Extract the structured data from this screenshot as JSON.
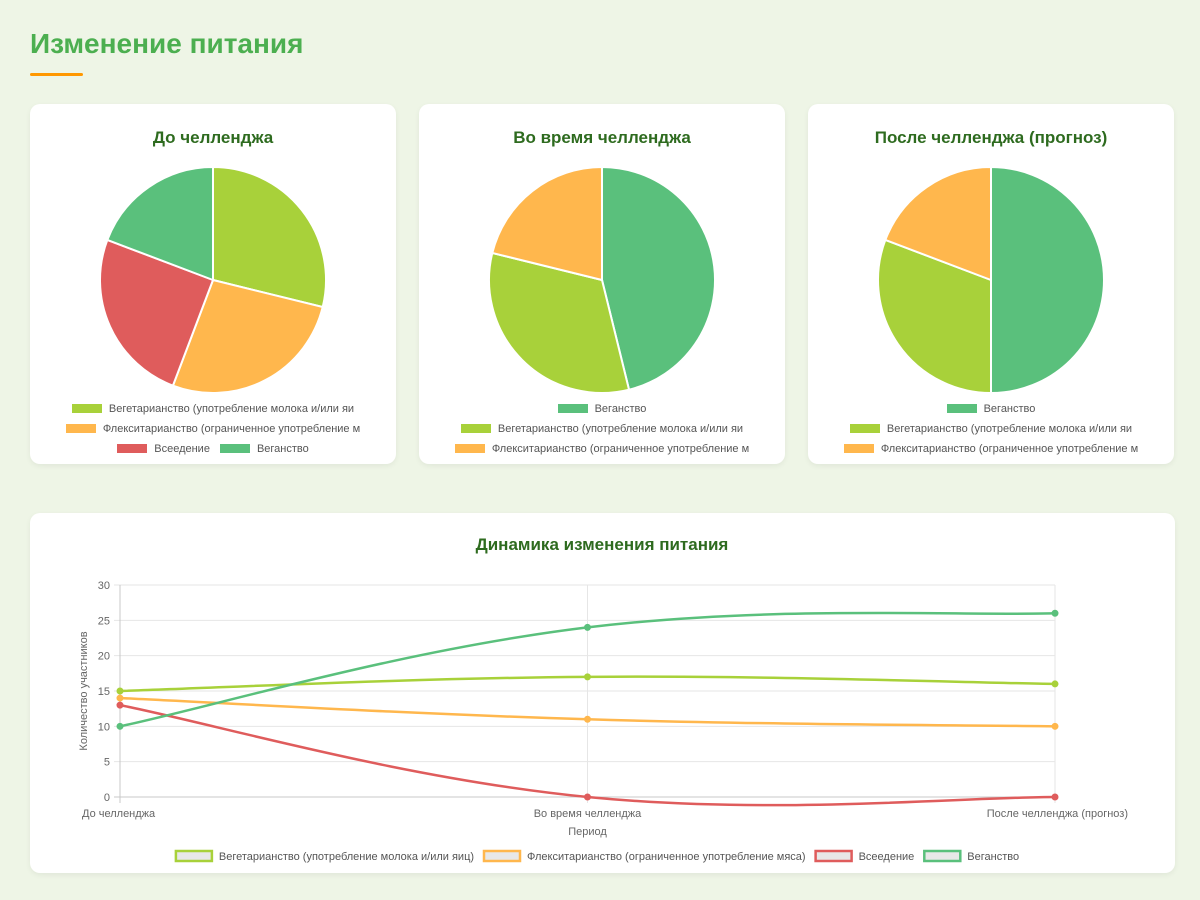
{
  "page": {
    "title": "Изменение питания"
  },
  "colors": {
    "vegetarian": "#a8d13a",
    "flexitarian": "#ffb74d",
    "omnivore": "#df5c5c",
    "vegan": "#5ac07c"
  },
  "chart_data": [
    {
      "type": "pie",
      "title": "До челленджа",
      "slices": [
        {
          "label": "Вегетарианство (употребление молока и/или яиц)",
          "legend_text": "Вегетарианство (употребление молока и/или яи",
          "value": 15,
          "color": "#a8d13a"
        },
        {
          "label": "Флекситарианство (ограниченное употребление мяса)",
          "legend_text": "Флекситарианство (ограниченное употребление м",
          "value": 14,
          "color": "#ffb74d"
        },
        {
          "label": "Всеедение",
          "legend_text": "Всеедение",
          "value": 13,
          "color": "#df5c5c"
        },
        {
          "label": "Веганство",
          "legend_text": "Веганство",
          "value": 10,
          "color": "#5ac07c"
        }
      ],
      "legend_rows": [
        [
          0
        ],
        [
          1
        ],
        [
          2,
          3
        ]
      ]
    },
    {
      "type": "pie",
      "title": "Во время челленджа",
      "slices": [
        {
          "label": "Веганство",
          "legend_text": "Веганство",
          "value": 24,
          "color": "#5ac07c"
        },
        {
          "label": "Вегетарианство (употребление молока и/или яиц)",
          "legend_text": "Вегетарианство (употребление молока и/или яи",
          "value": 17,
          "color": "#a8d13a"
        },
        {
          "label": "Флекситарианство (ограниченное употребление мяса)",
          "legend_text": "Флекситарианство (ограниченное употребление м",
          "value": 11,
          "color": "#ffb74d"
        }
      ],
      "legend_rows": [
        [
          0
        ],
        [
          1
        ],
        [
          2
        ]
      ]
    },
    {
      "type": "pie",
      "title": "После челленджа (прогноз)",
      "slices": [
        {
          "label": "Веганство",
          "legend_text": "Веганство",
          "value": 26,
          "color": "#5ac07c"
        },
        {
          "label": "Вегетарианство (употребление молока и/или яиц)",
          "legend_text": "Вегетарианство (употребление молока и/или яи",
          "value": 16,
          "color": "#a8d13a"
        },
        {
          "label": "Флекситарианство (ограниченное употребление мяса)",
          "legend_text": "Флекситарианство (ограниченное употребление м",
          "value": 10,
          "color": "#ffb74d"
        }
      ],
      "legend_rows": [
        [
          0
        ],
        [
          1
        ],
        [
          2
        ]
      ]
    },
    {
      "type": "line",
      "title": "Динамика изменения питания",
      "xlabel": "Период",
      "ylabel": "Количество участников",
      "categories": [
        "До челленджа",
        "Во время челленджа",
        "После челленджа (прогноз)"
      ],
      "ylim": [
        0,
        30
      ],
      "yticks": [
        0,
        5,
        10,
        15,
        20,
        25,
        30
      ],
      "grid": true,
      "legend_position": "bottom",
      "series": [
        {
          "name": "Вегетарианство (употребление молока и/или яиц)",
          "values": [
            15,
            17,
            16
          ],
          "color": "#a8d13a"
        },
        {
          "name": "Флекситарианство (ограниченное употребление мяса)",
          "values": [
            14,
            11,
            10
          ],
          "color": "#ffb74d"
        },
        {
          "name": "Всеедение",
          "values": [
            13,
            0,
            0
          ],
          "color": "#df5c5c"
        },
        {
          "name": "Веганство",
          "values": [
            10,
            24,
            26
          ],
          "color": "#5ac07c"
        }
      ]
    }
  ]
}
